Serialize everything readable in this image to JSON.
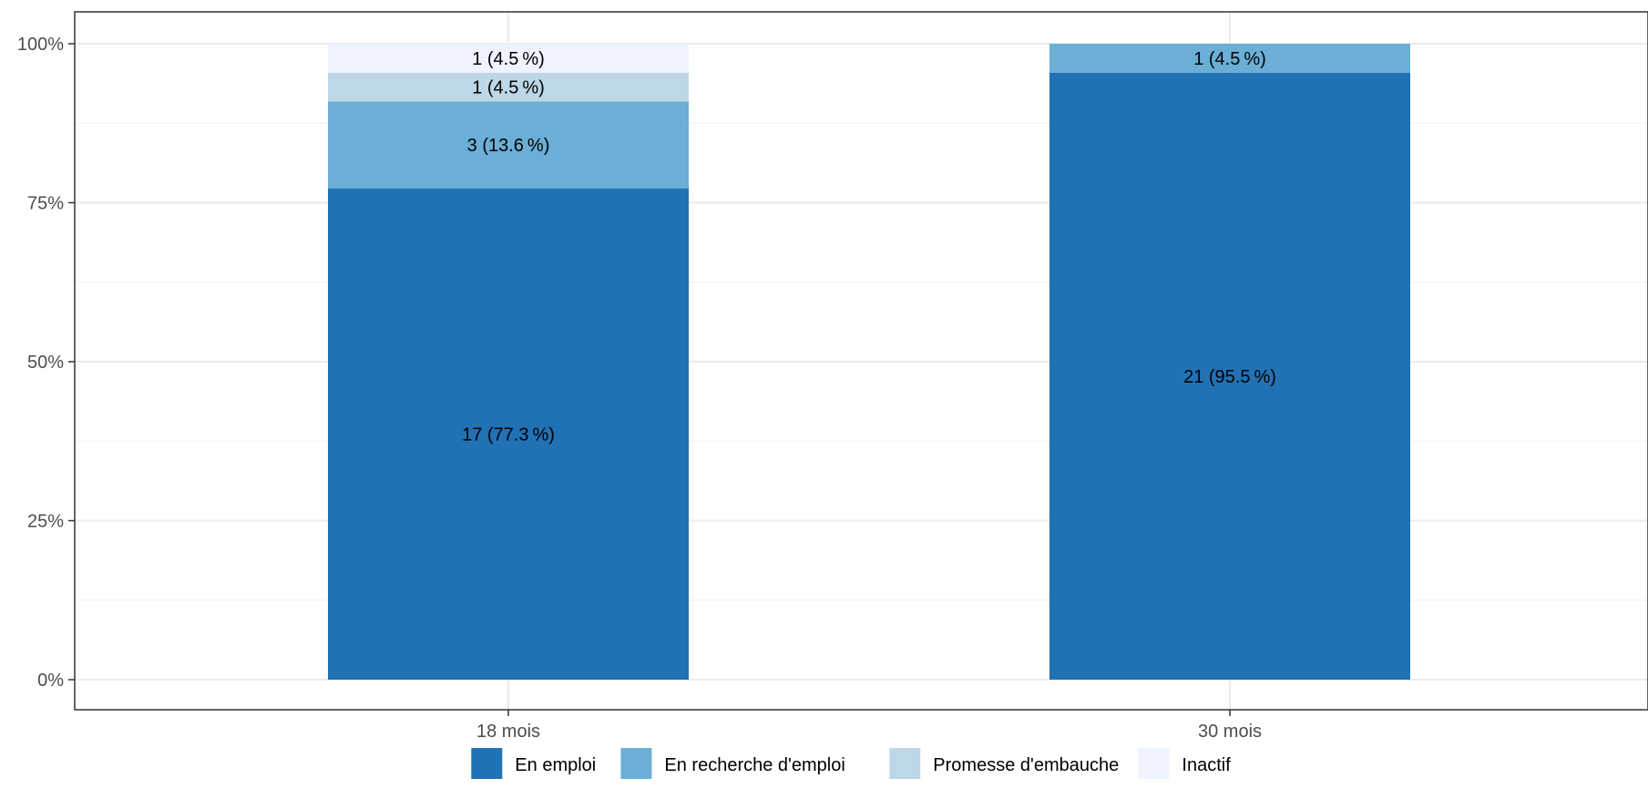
{
  "chart_data": {
    "type": "bar",
    "stacked": true,
    "normalized": true,
    "categories": [
      "18 mois",
      "30 mois"
    ],
    "series": [
      {
        "name": "En emploi",
        "color": "#2171b5",
        "values": [
          17,
          21
        ],
        "labels": [
          "17 (77.3 %)",
          "21 (95.5 %)"
        ]
      },
      {
        "name": "En recherche d'emploi",
        "color": "#6baed6",
        "values": [
          3,
          1
        ],
        "labels": [
          "3 (13.6 %)",
          "1 (4.5 %)"
        ]
      },
      {
        "name": "Promesse d'embauche",
        "color": "#bdd7e7",
        "values": [
          1,
          0
        ],
        "labels": [
          "1 (4.5 %)",
          ""
        ]
      },
      {
        "name": "Inactif",
        "color": "#eff3ff",
        "values": [
          1,
          0
        ],
        "labels": [
          "1 (4.5 %)",
          ""
        ]
      }
    ],
    "ylim": [
      0,
      1
    ],
    "yticks": [
      0,
      0.25,
      0.5,
      0.75,
      1
    ],
    "ytick_labels": [
      "0%",
      "25%",
      "50%",
      "75%",
      "100%"
    ],
    "xlabel": "",
    "ylabel": "",
    "grid": true,
    "legend_position": "bottom"
  }
}
